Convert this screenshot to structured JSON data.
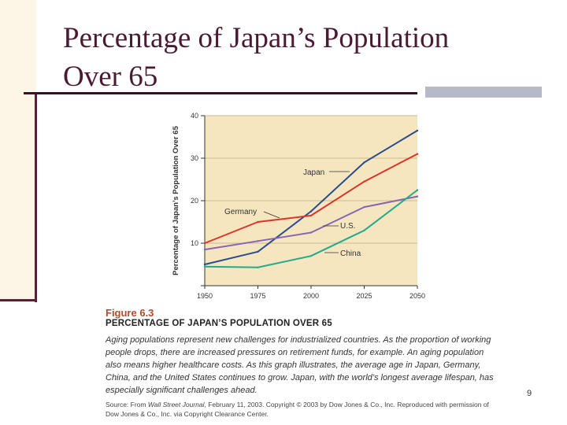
{
  "slide": {
    "title_line1": "Percentage of Japan’s Population",
    "title_line2": "Over 65",
    "page_number": "9"
  },
  "figure": {
    "number": "Figure 6.3",
    "title": "PERCENTAGE OF JAPAN’S POPULATION OVER 65",
    "caption": "Aging populations represent new challenges for industrialized countries. As the proportion of working people drops, there are increased pressures on retirement funds, for example. An aging population also means higher healthcare costs. As this graph illustrates, the average age in Japan, Germany, China, and the United States continues to grow. Japan, with the world’s longest average lifespan, has especially significant challenges ahead.",
    "source_prefix": "Source: From ",
    "source_italic": "Wall Street Journal",
    "source_rest": ", February 11, 2003. Copyright © 2003 by Dow Jones & Co., Inc. Reproduced with permission of Dow Jones & Co., Inc. via Copyright Clearance Center."
  },
  "chart_data": {
    "type": "line",
    "title": "",
    "xlabel": "",
    "ylabel": "Percentage of Japan’s Population Over 65",
    "x": [
      1950,
      1975,
      2000,
      2025,
      2050
    ],
    "xlim": [
      1950,
      2050
    ],
    "ylim": [
      0,
      40
    ],
    "yticks": [
      0,
      10,
      20,
      30,
      40
    ],
    "ytick_labels": [
      "",
      "10",
      "20",
      "30",
      "40"
    ],
    "grid": true,
    "series": [
      {
        "name": "Japan",
        "color": "#2a4d8f",
        "values": [
          5,
          8,
          17.5,
          29,
          36.5
        ]
      },
      {
        "name": "Germany",
        "color": "#d8352b",
        "values": [
          10,
          15,
          16.5,
          24.5,
          31
        ]
      },
      {
        "name": "U.S.",
        "color": "#8a64b4",
        "values": [
          8.5,
          10.5,
          12.5,
          18.5,
          21
        ]
      },
      {
        "name": "China",
        "color": "#24a98f",
        "values": [
          4.5,
          4.3,
          7,
          13,
          22.5
        ]
      }
    ],
    "plot_background": "#f6e6bf"
  }
}
